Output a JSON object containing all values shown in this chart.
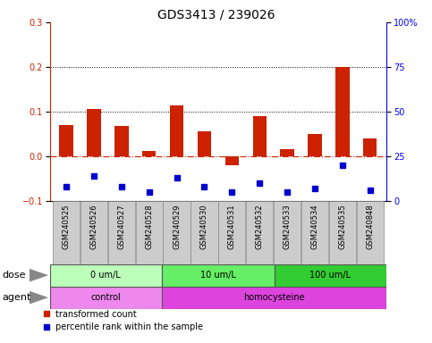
{
  "title": "GDS3413 / 239026",
  "samples": [
    "GSM240525",
    "GSM240526",
    "GSM240527",
    "GSM240528",
    "GSM240529",
    "GSM240530",
    "GSM240531",
    "GSM240532",
    "GSM240533",
    "GSM240534",
    "GSM240535",
    "GSM240848"
  ],
  "transformed_count": [
    0.07,
    0.105,
    0.068,
    0.012,
    0.113,
    0.055,
    -0.02,
    0.09,
    0.015,
    0.05,
    0.2,
    0.04
  ],
  "percentile_rank_raw": [
    8,
    14,
    8,
    5,
    13,
    8,
    5,
    10,
    5,
    7,
    20,
    6
  ],
  "ylim_left": [
    -0.1,
    0.3
  ],
  "ylim_right": [
    0,
    100
  ],
  "yticks_left": [
    -0.1,
    0.0,
    0.1,
    0.2,
    0.3
  ],
  "yticks_right": [
    0,
    25,
    50,
    75,
    100
  ],
  "yticklabels_right": [
    "0",
    "25",
    "50",
    "75",
    "100%"
  ],
  "hline_y": 0.0,
  "dotted_lines": [
    0.1,
    0.2
  ],
  "dose_groups": [
    {
      "label": "0 um/L",
      "start": 0,
      "end": 4,
      "color": "#bbffbb"
    },
    {
      "label": "10 um/L",
      "start": 4,
      "end": 8,
      "color": "#66ee66"
    },
    {
      "label": "100 um/L",
      "start": 8,
      "end": 12,
      "color": "#33cc33"
    }
  ],
  "agent_groups": [
    {
      "label": "control",
      "start": 0,
      "end": 4,
      "color": "#ee88ee"
    },
    {
      "label": "homocysteine",
      "start": 4,
      "end": 12,
      "color": "#dd44dd"
    }
  ],
  "bar_color_red": "#cc2200",
  "bar_color_blue": "#0000cc",
  "background_color": "#ffffff",
  "legend_red_label": "transformed count",
  "legend_blue_label": "percentile rank within the sample",
  "dose_label": "dose",
  "agent_label": "agent",
  "title_fontsize": 10,
  "tick_fontsize": 7,
  "label_fontsize": 7,
  "gsm_fontsize": 6
}
